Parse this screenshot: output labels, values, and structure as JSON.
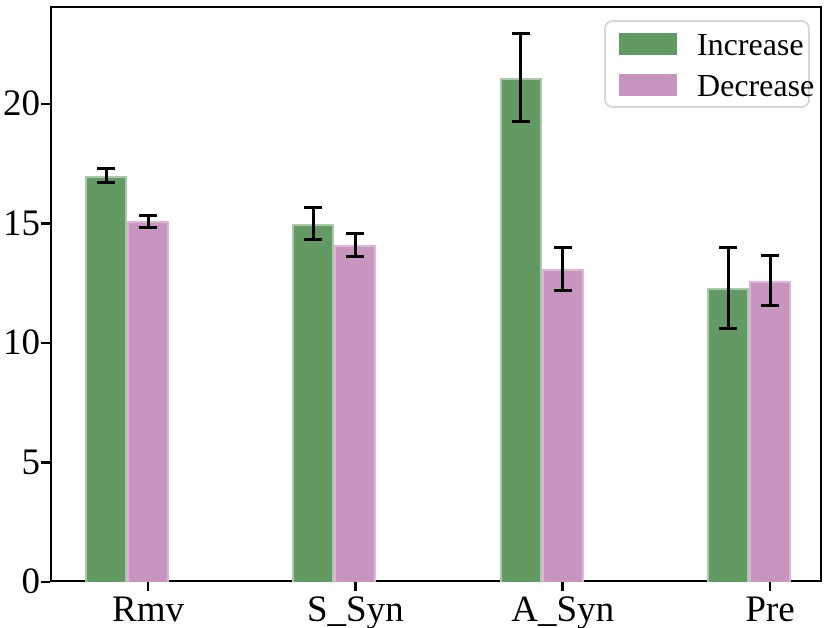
{
  "chart_data": {
    "type": "bar",
    "title": "",
    "xlabel": "",
    "ylabel": "",
    "categories": [
      "Rmv",
      "S_Syn",
      "A_Syn",
      "Pre"
    ],
    "series": [
      {
        "name": "Increase",
        "color": "#639a64",
        "edge_color": "#a9c9a9",
        "values": [
          17.0,
          15.0,
          21.1,
          12.3
        ],
        "errors": [
          0.3,
          0.65,
          1.85,
          1.7
        ]
      },
      {
        "name": "Decrease",
        "color": "#c795bf",
        "edge_color": "#ddb5d6",
        "values": [
          15.1,
          14.1,
          13.1,
          12.6
        ],
        "errors": [
          0.25,
          0.5,
          0.9,
          1.05
        ]
      }
    ],
    "yticks": [
      "0",
      "5",
      "10",
      "15",
      "20"
    ],
    "ylim": [
      0,
      24.1
    ],
    "grid": false,
    "error_bar_color": "#000000",
    "axis_color": "#000000",
    "legend": {
      "position": "upper right",
      "entries": [
        "Increase",
        "Decrease"
      ]
    }
  }
}
